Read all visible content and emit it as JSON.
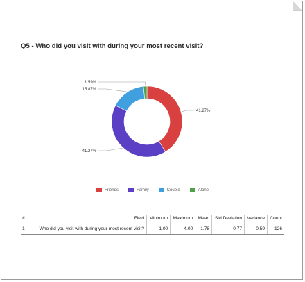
{
  "title": "Q5 - Who did you visit with during your most recent visit?",
  "chart_data": {
    "type": "pie",
    "variant": "donut",
    "categories": [
      "Friends",
      "Family",
      "Couple",
      "Alone"
    ],
    "values": [
      41.27,
      41.27,
      15.87,
      1.59
    ],
    "labels": [
      "41.27%",
      "41.27%",
      "15.87%",
      "1.59%"
    ],
    "colors": [
      "#d94040",
      "#5b3fc4",
      "#3f9fdf",
      "#4ea24a"
    ],
    "legend_position": "bottom"
  },
  "table": {
    "headers": [
      "#",
      "Field",
      "Minimum",
      "Maximum",
      "Mean",
      "Std Deviation",
      "Variance",
      "Count"
    ],
    "rows": [
      [
        "1",
        "Who did you visit with during your most recent visit?",
        "1.00",
        "4.00",
        "1.78",
        "0.77",
        "0.59",
        "126"
      ]
    ]
  }
}
